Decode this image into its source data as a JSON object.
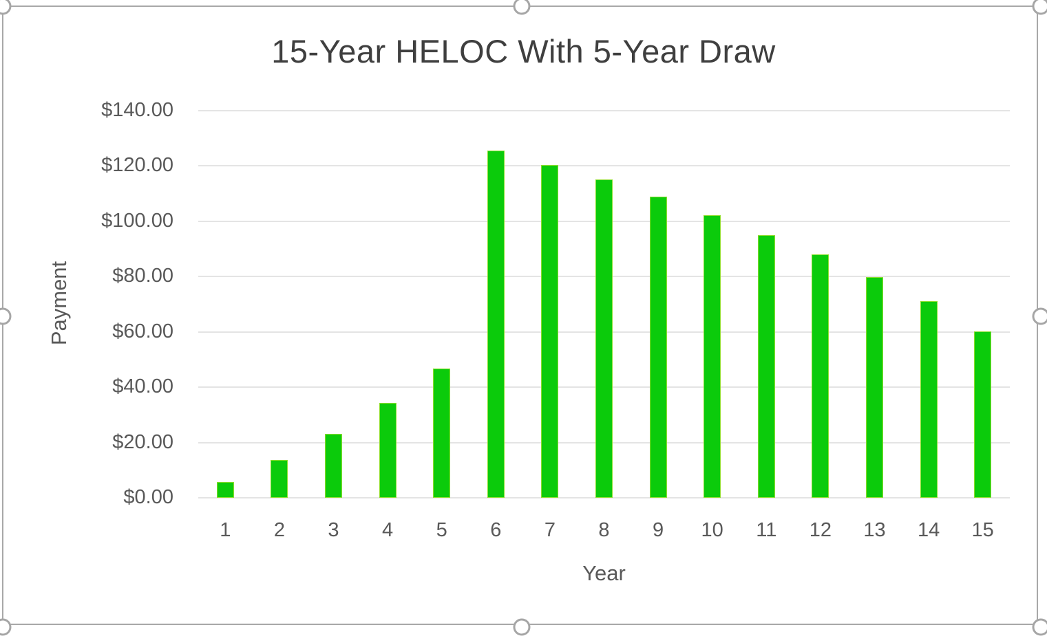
{
  "window": {
    "kind": "spreadsheet-embedded-chart",
    "selected": true,
    "selection_handle_color": "#a6a6a6",
    "frame_border_color": "#a8a8a8",
    "background_color": "#ffffff"
  },
  "chart_data": {
    "type": "bar",
    "title": "15-Year HELOC With 5-Year Draw",
    "xlabel": "Year",
    "ylabel": "Payment",
    "categories": [
      "1",
      "2",
      "3",
      "4",
      "5",
      "6",
      "7",
      "8",
      "9",
      "10",
      "11",
      "12",
      "13",
      "14",
      "15"
    ],
    "values": [
      5.6,
      13.6,
      23.2,
      34.2,
      46.7,
      125.5,
      120.4,
      115.1,
      109.0,
      102.1,
      94.9,
      88.0,
      79.9,
      71.1,
      60.3
    ],
    "ylim": [
      0,
      140
    ],
    "ytick_step": 20,
    "ytick_labels": [
      "$0.00",
      "$20.00",
      "$40.00",
      "$60.00",
      "$80.00",
      "$100.00",
      "$120.00",
      "$140.00"
    ],
    "grid": true,
    "legend": false,
    "bar_color": "#0bcb0b",
    "bar_border_color": "#8ede2e",
    "gridline_color": "#e4e4e4",
    "tick_label_color": "#595959",
    "axis_title_color": "#595959",
    "title_color": "#3f3f3f"
  },
  "selection_handles": [
    {
      "name": "top-left"
    },
    {
      "name": "top-middle"
    },
    {
      "name": "top-right"
    },
    {
      "name": "middle-left"
    },
    {
      "name": "middle-right"
    },
    {
      "name": "bottom-left"
    },
    {
      "name": "bottom-middle"
    },
    {
      "name": "bottom-right"
    }
  ]
}
